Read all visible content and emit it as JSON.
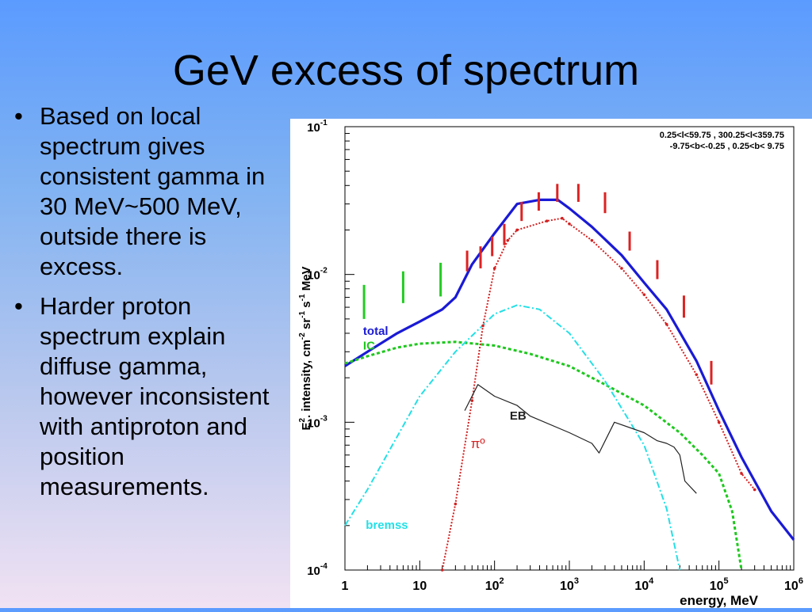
{
  "slide": {
    "title": "GeV excess of spectrum",
    "bullets": [
      "Based on local spectrum gives consistent gamma in 30 MeV~500 MeV, outside there is excess.",
      "Harder proton spectrum explain diffuse gamma, however inconsistent with antiproton and position measurements."
    ],
    "bullet_glyph": "•"
  },
  "chart_data": {
    "type": "line",
    "xscale": "log",
    "yscale": "log",
    "xlim": [
      1,
      1000000
    ],
    "ylim": [
      0.0001,
      0.1
    ],
    "xlabel": "energy, MeV",
    "ylabel_parts": [
      "E",
      "2",
      ". intensity, cm",
      "-2",
      " sr",
      "-1",
      " s",
      "-1",
      " MeV"
    ],
    "xticks": [
      {
        "v": 1,
        "base": "1",
        "exp": ""
      },
      {
        "v": 10,
        "base": "10",
        "exp": ""
      },
      {
        "v": 100,
        "base": "10",
        "exp": "2"
      },
      {
        "v": 1000,
        "base": "10",
        "exp": "3"
      },
      {
        "v": 10000,
        "base": "10",
        "exp": "4"
      },
      {
        "v": 100000,
        "base": "10",
        "exp": "5"
      },
      {
        "v": 1000000,
        "base": "10",
        "exp": "6"
      }
    ],
    "yticks": [
      {
        "v": 0.1,
        "base": "10",
        "exp": "-1"
      },
      {
        "v": 0.01,
        "base": "10",
        "exp": "-2"
      },
      {
        "v": 0.001,
        "base": "10",
        "exp": "-3"
      },
      {
        "v": 0.0001,
        "base": "10",
        "exp": "-4"
      }
    ],
    "region_text": [
      "0.25<l<59.75 , 300.25<l<359.75",
      "-9.75<b<-0.25 ,  0.25<b< 9.75"
    ],
    "colors": {
      "total": "#1a1ad6",
      "ic": "#1ec81e",
      "bremss": "#22e0e6",
      "pi0": "#d42020",
      "eb": "#222222",
      "green_data": "#22cc22",
      "red_data": "#dd2222"
    },
    "series": [
      {
        "key": "total",
        "name": "total",
        "label_at": [
          1.75,
          0.0039
        ],
        "style": "solid",
        "points": [
          [
            1,
            0.0024
          ],
          [
            2,
            0.003
          ],
          [
            5,
            0.004
          ],
          [
            10,
            0.0048
          ],
          [
            20,
            0.0058
          ],
          [
            30,
            0.007
          ],
          [
            50,
            0.0117
          ],
          [
            100,
            0.019
          ],
          [
            200,
            0.03
          ],
          [
            400,
            0.032
          ],
          [
            700,
            0.032
          ],
          [
            1000,
            0.028
          ],
          [
            2000,
            0.021
          ],
          [
            5000,
            0.0135
          ],
          [
            10000,
            0.0088
          ],
          [
            20000,
            0.0058
          ],
          [
            50000,
            0.0026
          ],
          [
            100000,
            0.0012
          ],
          [
            200000,
            0.00058
          ],
          [
            500000,
            0.00025
          ],
          [
            1000000,
            0.00016
          ]
        ]
      },
      {
        "key": "ic",
        "name": "IC",
        "label_at": [
          1.75,
          0.0031
        ],
        "style": "dashed",
        "points": [
          [
            1,
            0.0025
          ],
          [
            2,
            0.0028
          ],
          [
            5,
            0.0032
          ],
          [
            10,
            0.0034
          ],
          [
            30,
            0.0035
          ],
          [
            100,
            0.0033
          ],
          [
            300,
            0.0029
          ],
          [
            1000,
            0.0024
          ],
          [
            3000,
            0.0018
          ],
          [
            10000,
            0.0013
          ],
          [
            30000,
            0.00085
          ],
          [
            60000,
            0.0006
          ],
          [
            100000,
            0.00045
          ],
          [
            150000,
            0.00025
          ],
          [
            200000,
            0.0001
          ]
        ]
      },
      {
        "key": "bremss",
        "name": "bremss",
        "label_at": [
          1.9,
          0.00019
        ],
        "style": "dashdot",
        "points": [
          [
            1,
            0.0002
          ],
          [
            2,
            0.00035
          ],
          [
            5,
            0.0008
          ],
          [
            10,
            0.0015
          ],
          [
            30,
            0.003
          ],
          [
            100,
            0.0054
          ],
          [
            200,
            0.0062
          ],
          [
            400,
            0.0058
          ],
          [
            1000,
            0.004
          ],
          [
            3000,
            0.0019
          ],
          [
            10000,
            0.0007
          ],
          [
            20000,
            0.00026
          ],
          [
            30000,
            0.0001
          ]
        ]
      },
      {
        "key": "pi0",
        "name": "πº",
        "label_at": [
          48,
          0.00067
        ],
        "style": "dotted",
        "points": [
          [
            20,
            0.0001
          ],
          [
            30,
            0.00028
          ],
          [
            50,
            0.0014
          ],
          [
            70,
            0.0045
          ],
          [
            100,
            0.011
          ],
          [
            150,
            0.017
          ],
          [
            200,
            0.02
          ],
          [
            500,
            0.023
          ],
          [
            800,
            0.024
          ],
          [
            1000,
            0.022
          ],
          [
            2000,
            0.017
          ],
          [
            5000,
            0.011
          ],
          [
            10000,
            0.0073
          ],
          [
            20000,
            0.0046
          ],
          [
            50000,
            0.0021
          ],
          [
            100000,
            0.001
          ],
          [
            200000,
            0.00045
          ],
          [
            300000,
            0.00035
          ]
        ]
      },
      {
        "key": "eb",
        "name": "EB",
        "label_at": [
          160,
          0.00104
        ],
        "style": "solid",
        "points": [
          [
            40,
            0.0012
          ],
          [
            60,
            0.0018
          ],
          [
            100,
            0.0015
          ],
          [
            200,
            0.0013
          ],
          [
            300,
            0.0011
          ],
          [
            1000,
            0.00085
          ],
          [
            2000,
            0.00072
          ],
          [
            2500,
            0.00062
          ],
          [
            4000,
            0.001
          ],
          [
            10000,
            0.00085
          ],
          [
            15000,
            0.00075
          ],
          [
            20000,
            0.00072
          ],
          [
            25000,
            0.00068
          ],
          [
            30000,
            0.0006
          ],
          [
            35000,
            0.0004
          ],
          [
            50000,
            0.00033
          ]
        ]
      }
    ],
    "data_bars": [
      {
        "color": "green_data",
        "x": 1.8,
        "ylo": 0.005,
        "yhi": 0.0085
      },
      {
        "color": "green_data",
        "x": 6,
        "ylo": 0.0064,
        "yhi": 0.0105
      },
      {
        "color": "green_data",
        "x": 19,
        "ylo": 0.0071,
        "yhi": 0.012
      },
      {
        "color": "red_data",
        "x": 43,
        "ylo": 0.0105,
        "yhi": 0.0145
      },
      {
        "color": "red_data",
        "x": 65,
        "ylo": 0.011,
        "yhi": 0.0155
      },
      {
        "color": "red_data",
        "x": 93,
        "ylo": 0.0133,
        "yhi": 0.018
      },
      {
        "color": "red_data",
        "x": 135,
        "ylo": 0.0158,
        "yhi": 0.022
      },
      {
        "color": "red_data",
        "x": 230,
        "ylo": 0.023,
        "yhi": 0.031
      },
      {
        "color": "red_data",
        "x": 390,
        "ylo": 0.027,
        "yhi": 0.036
      },
      {
        "color": "red_data",
        "x": 690,
        "ylo": 0.031,
        "yhi": 0.041
      },
      {
        "color": "red_data",
        "x": 1320,
        "ylo": 0.031,
        "yhi": 0.041
      },
      {
        "color": "red_data",
        "x": 3000,
        "ylo": 0.026,
        "yhi": 0.036
      },
      {
        "color": "red_data",
        "x": 6400,
        "ylo": 0.0145,
        "yhi": 0.0195
      },
      {
        "color": "red_data",
        "x": 15000,
        "ylo": 0.0093,
        "yhi": 0.0125
      },
      {
        "color": "red_data",
        "x": 34000,
        "ylo": 0.0051,
        "yhi": 0.0072
      },
      {
        "color": "red_data",
        "x": 79000,
        "ylo": 0.0018,
        "yhi": 0.0026
      }
    ]
  }
}
